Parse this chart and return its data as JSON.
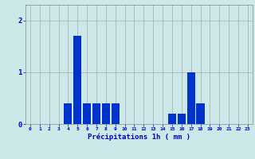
{
  "hours": [
    0,
    1,
    2,
    3,
    4,
    5,
    6,
    7,
    8,
    9,
    10,
    11,
    12,
    13,
    14,
    15,
    16,
    17,
    18,
    19,
    20,
    21,
    22,
    23
  ],
  "values": [
    0,
    0,
    0,
    0,
    0.4,
    1.7,
    0.4,
    0.4,
    0.4,
    0.4,
    0,
    0,
    0,
    0,
    0,
    0.2,
    0.2,
    1.0,
    0.4,
    0,
    0,
    0,
    0,
    0
  ],
  "bar_color": "#0033cc",
  "background_color": "#cce8e8",
  "grid_color": "#aaaaaa",
  "xlabel": "Précipitations 1h ( mm )",
  "xlabel_color": "#0000cc",
  "tick_color": "#0000cc",
  "yticks": [
    0,
    1,
    2
  ],
  "ylim": [
    0,
    2.3
  ],
  "xlim": [
    -0.5,
    23.5
  ]
}
